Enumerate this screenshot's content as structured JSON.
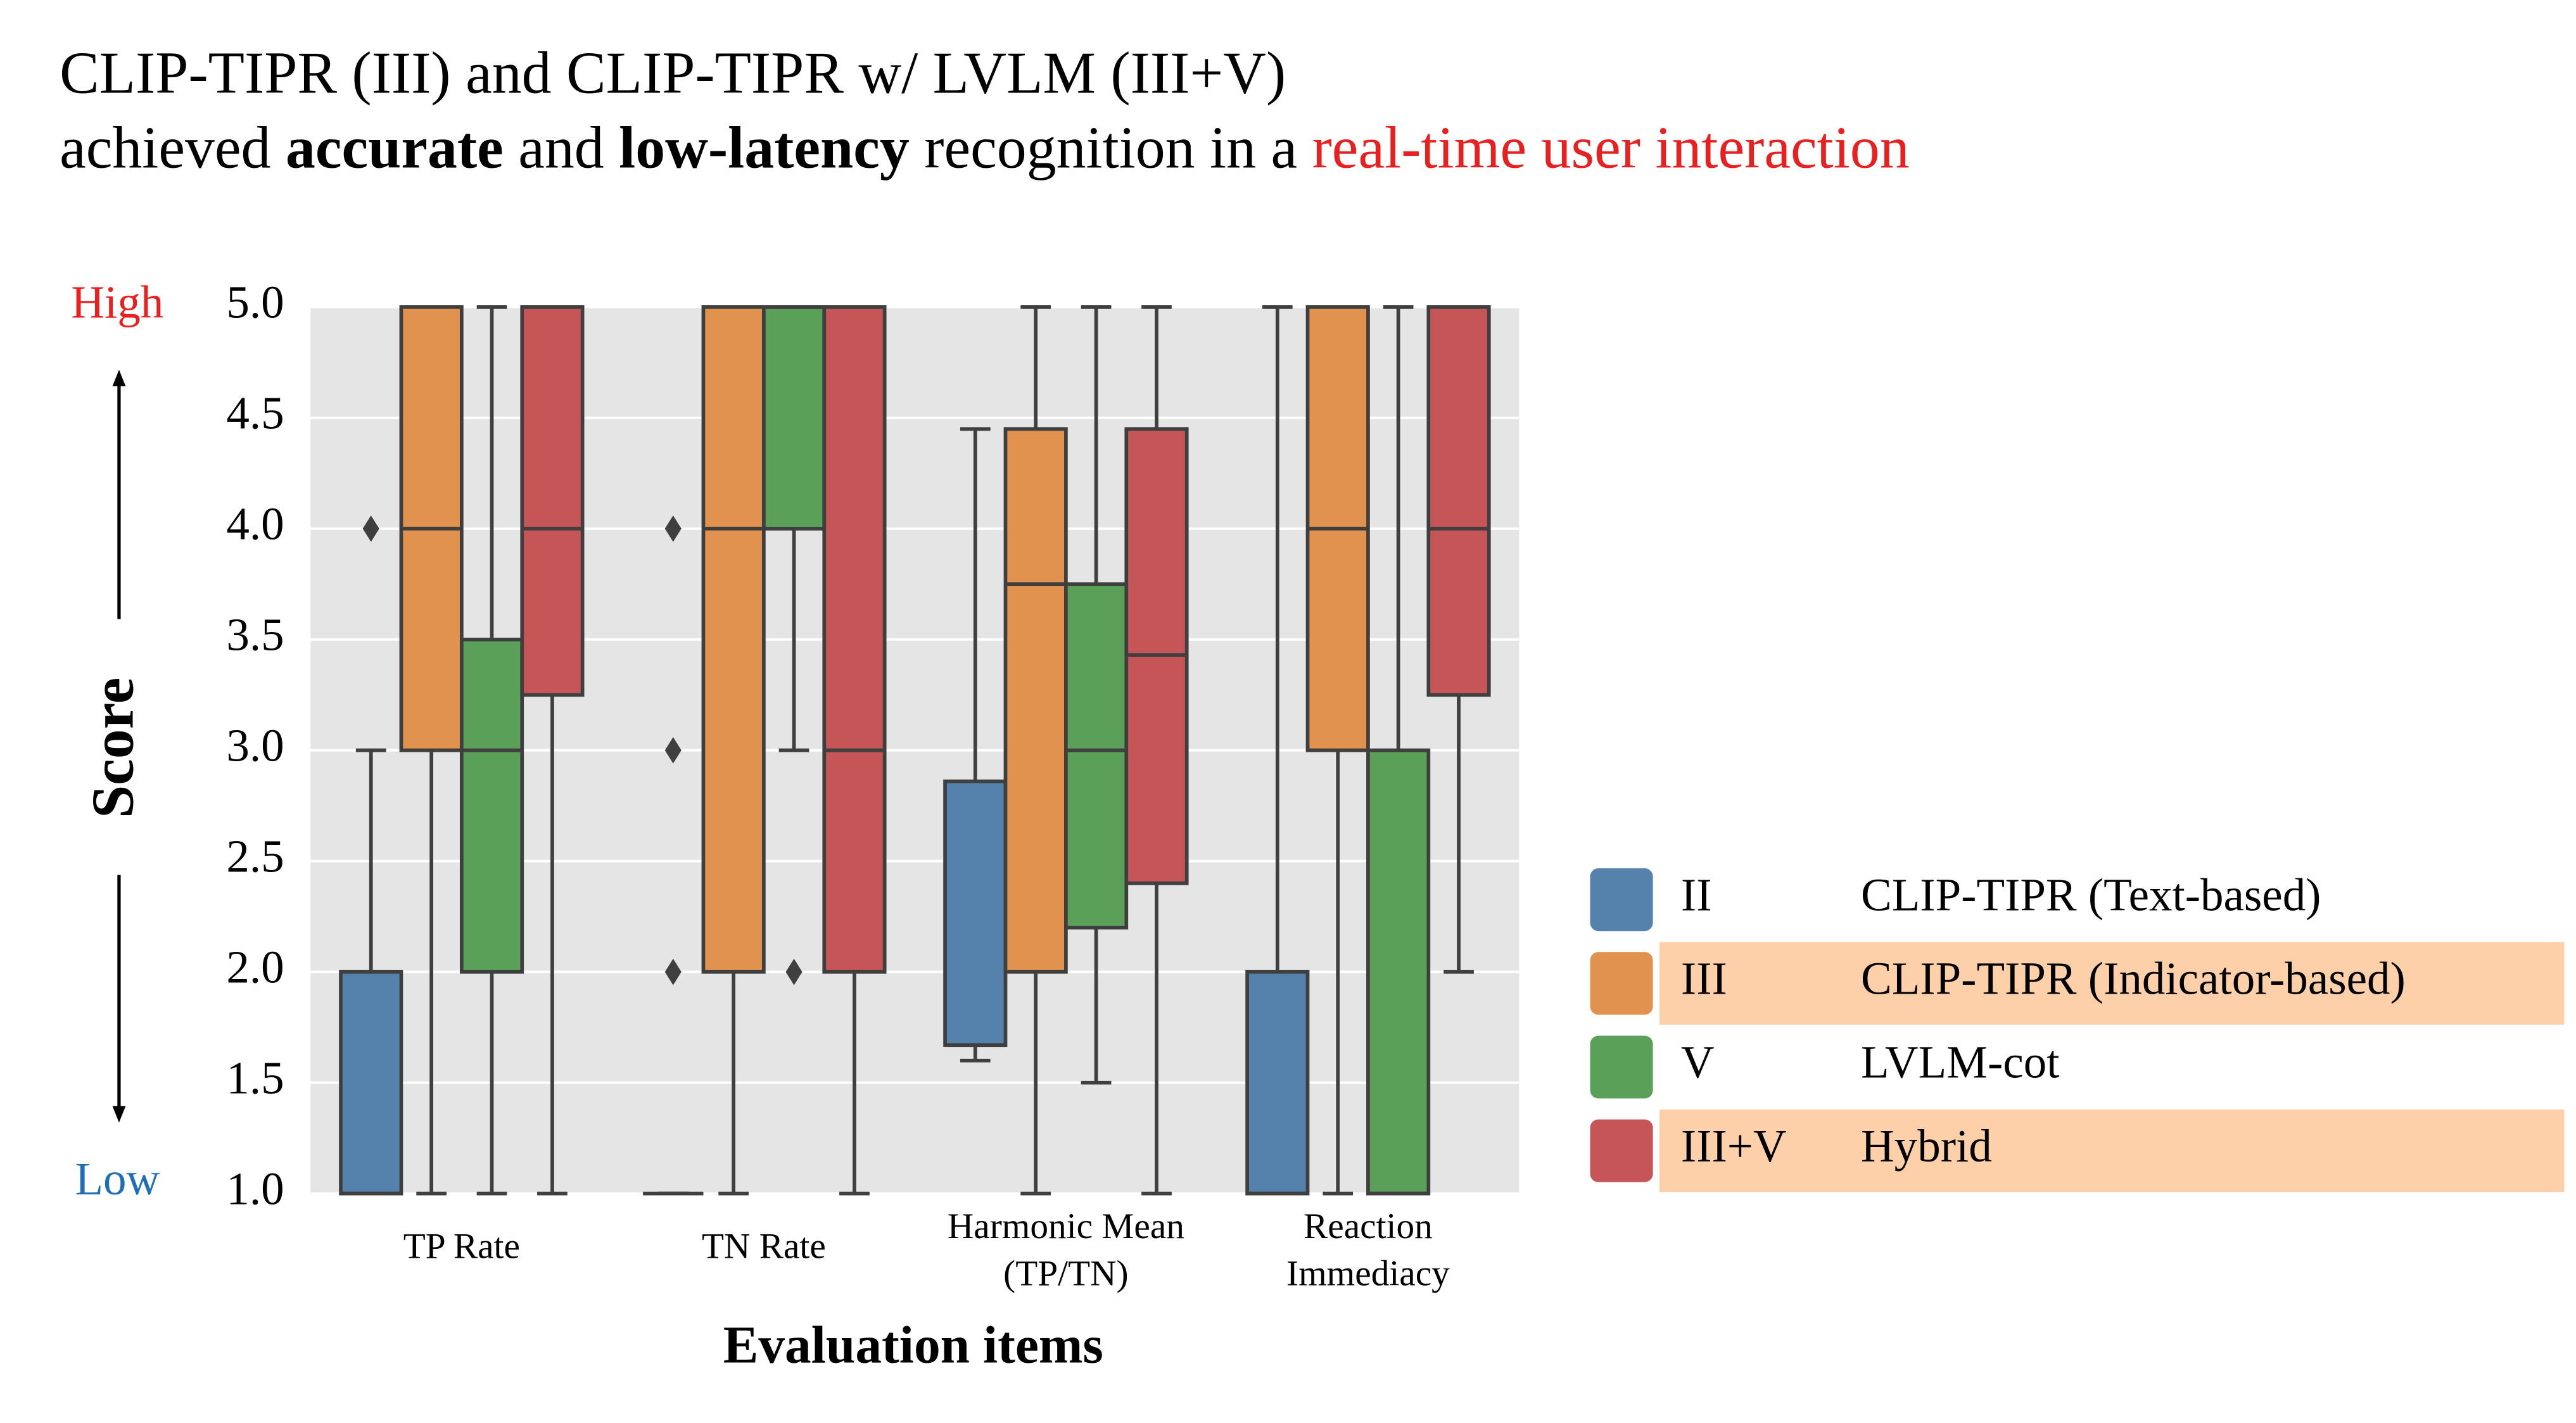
{
  "chart_data": {
    "type": "box",
    "title": "CLIP-TIPR (III) and CLIP-TIPR w/ LVLM (III+V)",
    "subtitle_parts": [
      {
        "text": "achieved ",
        "weight": "normal",
        "color": "#000000"
      },
      {
        "text": "accurate",
        "weight": "bold",
        "color": "#000000"
      },
      {
        "text": " and ",
        "weight": "normal",
        "color": "#000000"
      },
      {
        "text": "low-latency",
        "weight": "bold",
        "color": "#000000"
      },
      {
        "text": " recognition in a ",
        "weight": "normal",
        "color": "#000000"
      },
      {
        "text": "real-time user interaction",
        "weight": "normal",
        "color": "#e8201f"
      }
    ],
    "y_label": "Score",
    "x_label": "Evaluation items",
    "y_high_label": {
      "text": "High",
      "color": "#e8201f"
    },
    "y_low_label": {
      "text": "Low",
      "color": "#1f6fb5"
    },
    "categories": [
      "TP Rate",
      "TN Rate",
      "Harmonic Mean\n(TP/TN)",
      "Reaction\nImmediacy"
    ],
    "ylim": [
      1,
      5
    ],
    "yticks": [
      {
        "value": 1,
        "label": "1.0"
      },
      {
        "value": 1.5,
        "label": "1.5"
      },
      {
        "value": 2,
        "label": "2.0"
      },
      {
        "value": 2.5,
        "label": "2.5"
      },
      {
        "value": 3,
        "label": "3.0"
      },
      {
        "value": 3.5,
        "label": "3.5"
      },
      {
        "value": 4,
        "label": "4.0"
      },
      {
        "value": 4.5,
        "label": "4.5"
      },
      {
        "value": 5,
        "label": "5.0"
      }
    ],
    "grid": true,
    "legend_highlight_color": "#fdd0aa",
    "series": [
      {
        "code": "II",
        "name": "CLIP-TIPR (Text-based)",
        "color": "#5482ad",
        "highlight": false,
        "boxes": [
          {
            "low": 1,
            "q1": 1,
            "median": 1,
            "q3": 2,
            "high": 3,
            "outliers": [
              4
            ]
          },
          {
            "low": 1,
            "q1": 1,
            "median": 1,
            "q3": 1,
            "high": 1,
            "outliers": [
              4,
              3,
              2
            ]
          },
          {
            "low": 1.6,
            "q1": 1.67,
            "median": 1.67,
            "q3": 2.86,
            "high": 4.45,
            "outliers": []
          },
          {
            "low": 1,
            "q1": 1,
            "median": 1,
            "q3": 2,
            "high": 5,
            "outliers": []
          }
        ]
      },
      {
        "code": "III",
        "name": "CLIP-TIPR (Indicator-based)",
        "color": "#e1924e",
        "highlight": true,
        "boxes": [
          {
            "low": 1,
            "q1": 3,
            "median": 4,
            "q3": 5,
            "high": 5,
            "outliers": []
          },
          {
            "low": 1,
            "q1": 2,
            "median": 4,
            "q3": 5,
            "high": 5,
            "outliers": []
          },
          {
            "low": 1,
            "q1": 2,
            "median": 3.75,
            "q3": 4.45,
            "high": 5,
            "outliers": []
          },
          {
            "low": 1,
            "q1": 3,
            "median": 4,
            "q3": 5,
            "high": 5,
            "outliers": []
          }
        ]
      },
      {
        "code": "V",
        "name": "LVLM-cot",
        "color": "#5ba058",
        "highlight": false,
        "boxes": [
          {
            "low": 1,
            "q1": 2,
            "median": 3,
            "q3": 3.5,
            "high": 5,
            "outliers": []
          },
          {
            "low": 3,
            "q1": 4,
            "median": 5,
            "q3": 5,
            "high": 5,
            "outliers": [
              2
            ]
          },
          {
            "low": 1.5,
            "q1": 2.2,
            "median": 3,
            "q3": 3.75,
            "high": 5,
            "outliers": []
          },
          {
            "low": 1,
            "q1": 1,
            "median": 1,
            "q3": 3,
            "high": 5,
            "outliers": []
          }
        ]
      },
      {
        "code": "III+V",
        "name": "Hybrid",
        "color": "#c65558",
        "highlight": true,
        "boxes": [
          {
            "low": 1,
            "q1": 3.25,
            "median": 4,
            "q3": 5,
            "high": 5,
            "outliers": []
          },
          {
            "low": 1,
            "q1": 2,
            "median": 3,
            "q3": 5,
            "high": 5,
            "outliers": []
          },
          {
            "low": 1,
            "q1": 2.4,
            "median": 3.43,
            "q3": 4.45,
            "high": 5,
            "outliers": []
          },
          {
            "low": 2,
            "q1": 3.25,
            "median": 4,
            "q3": 5,
            "high": 5,
            "outliers": []
          }
        ]
      }
    ]
  }
}
